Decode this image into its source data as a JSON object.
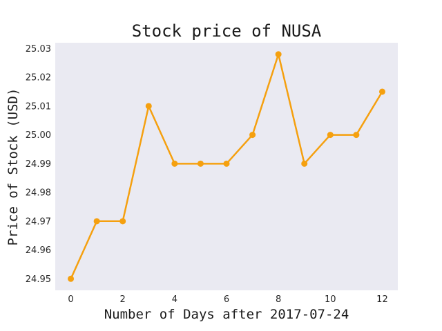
{
  "chart_data": {
    "type": "line",
    "title": "Stock price of NUSA",
    "xlabel": "Number of Days after 2017-07-24",
    "ylabel": "Price of Stock (USD)",
    "x": [
      0,
      1,
      2,
      3,
      4,
      5,
      6,
      7,
      8,
      9,
      10,
      11,
      12
    ],
    "series": [
      {
        "values": [
          24.95,
          24.97,
          24.97,
          25.01,
          24.99,
          24.99,
          24.99,
          25.0,
          25.028,
          24.99,
          25.0,
          25.0,
          25.015
        ]
      }
    ],
    "xlim": [
      -0.6,
      12.6
    ],
    "ylim": [
      24.946,
      25.032
    ],
    "xticks": [
      0,
      2,
      4,
      6,
      8,
      10,
      12
    ],
    "xtick_labels": [
      "0",
      "2",
      "4",
      "6",
      "8",
      "10",
      "12"
    ],
    "yticks": [
      24.95,
      24.96,
      24.97,
      24.98,
      24.99,
      25.0,
      25.01,
      25.02,
      25.03
    ],
    "ytick_labels": [
      "24.95",
      "24.96",
      "24.97",
      "24.98",
      "24.99",
      "25.00",
      "25.01",
      "25.02",
      "25.03"
    ],
    "grid": false,
    "colors": {
      "line": "#f5a00f",
      "plot_background": "#eaeaf2"
    }
  }
}
